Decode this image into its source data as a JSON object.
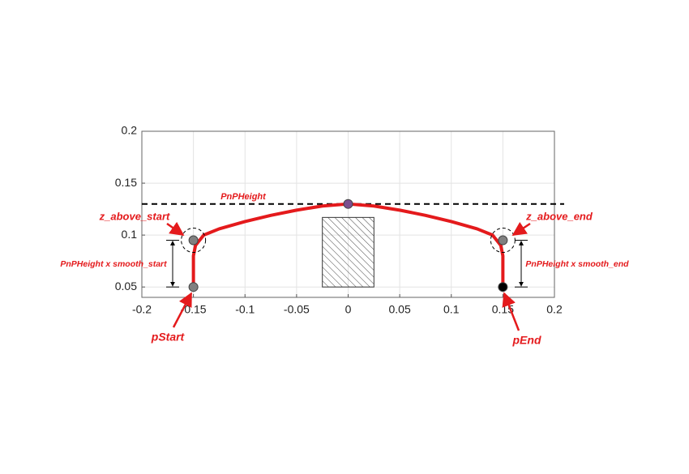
{
  "chart_data": {
    "type": "line",
    "xlim": [
      -0.2,
      0.2
    ],
    "ylim": [
      0.04,
      0.2
    ],
    "xticks": [
      -0.2,
      -0.15,
      -0.1,
      -0.05,
      0,
      0.05,
      0.1,
      0.15,
      0.2
    ],
    "yticks": [
      0.05,
      0.1,
      0.15,
      0.2
    ],
    "grid": true,
    "curves": [
      {
        "color": "#e41a1c",
        "x": [
          -0.15,
          -0.15,
          -0.148,
          -0.14,
          -0.125,
          -0.1,
          -0.075,
          -0.05,
          -0.025,
          0,
          0.025,
          0.05,
          0.075,
          0.1,
          0.125,
          0.14,
          0.148,
          0.15,
          0.15
        ],
        "y": [
          0.05,
          0.08,
          0.09,
          0.1,
          0.106,
          0.113,
          0.119,
          0.124,
          0.128,
          0.13,
          0.128,
          0.124,
          0.119,
          0.113,
          0.106,
          0.1,
          0.09,
          0.08,
          0.05
        ]
      }
    ],
    "reference_line": {
      "y": 0.13,
      "color": "#000000"
    },
    "obstacle": {
      "x": [
        -0.025,
        0.025
      ],
      "y": [
        0.05,
        0.117
      ]
    },
    "points": [
      {
        "x": -0.15,
        "y": 0.05,
        "color": "#808080"
      },
      {
        "x": -0.15,
        "y": 0.095,
        "color": "#808080"
      },
      {
        "x": 0,
        "y": 0.13,
        "color": "#7b4f8f"
      },
      {
        "x": 0.15,
        "y": 0.095,
        "color": "#808080"
      },
      {
        "x": 0.15,
        "y": 0.05,
        "color": "#000000"
      }
    ],
    "annotations": [
      "PnPHeight",
      "z_above_start",
      "z_above_end",
      "PnPHeight x smooth_start",
      "PnPHeight x smooth_end",
      "pStart",
      "pEnd"
    ],
    "annotation_color": "#e41a1c"
  }
}
